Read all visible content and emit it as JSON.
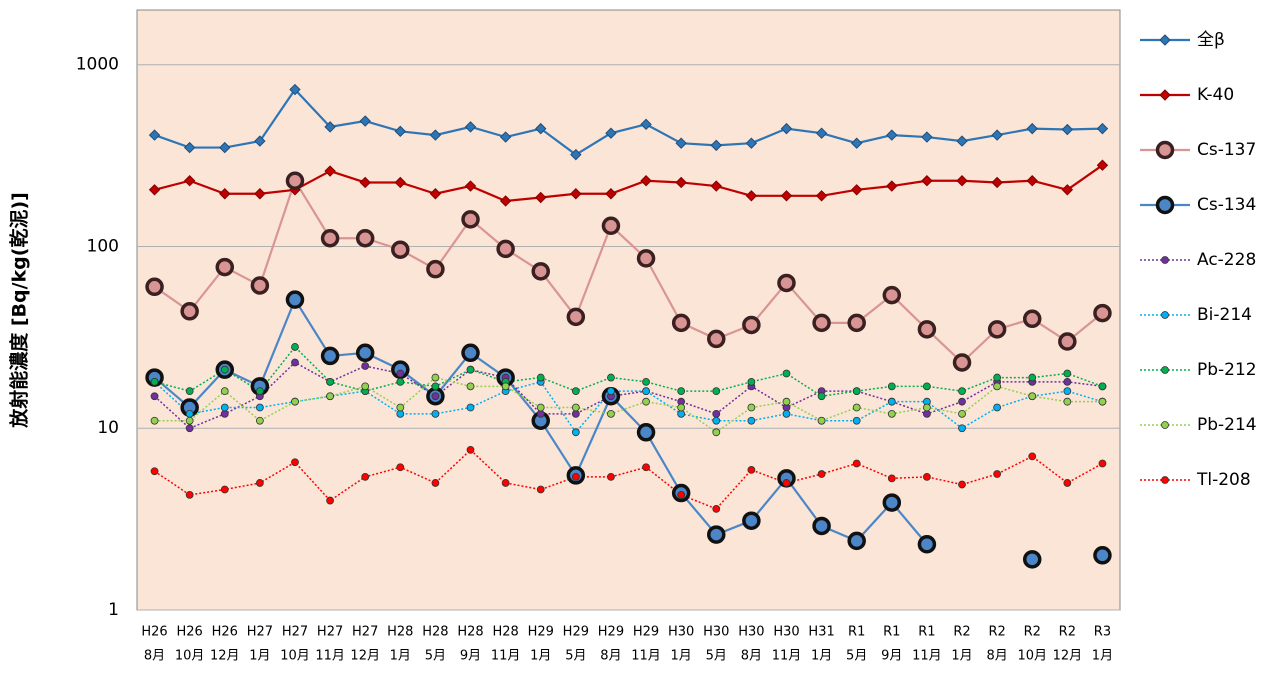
{
  "chart_data": {
    "type": "line",
    "ylabel": "放射能濃度 [Bq/kg(乾泥)]",
    "log_scale": true,
    "grid": true,
    "categories": [
      [
        "H26",
        "8月"
      ],
      [
        "H26",
        "10月"
      ],
      [
        "H26",
        "12月"
      ],
      [
        "H27",
        "1月"
      ],
      [
        "H27",
        "10月"
      ],
      [
        "H27",
        "11月"
      ],
      [
        "H27",
        "12月"
      ],
      [
        "H28",
        "1月"
      ],
      [
        "H28",
        "5月"
      ],
      [
        "H28",
        "9月"
      ],
      [
        "H28",
        "11月"
      ],
      [
        "H29",
        "1月"
      ],
      [
        "H29",
        "5月"
      ],
      [
        "H29",
        "8月"
      ],
      [
        "H29",
        "11月"
      ],
      [
        "H30",
        "1月"
      ],
      [
        "H30",
        "5月"
      ],
      [
        "H30",
        "8月"
      ],
      [
        "H30",
        "11月"
      ],
      [
        "H31",
        "1月"
      ],
      [
        "R1",
        "5月"
      ],
      [
        "R1",
        "9月"
      ],
      [
        "R1",
        "11月"
      ],
      [
        "R2",
        "1月"
      ],
      [
        "R2",
        "8月"
      ],
      [
        "R2",
        "10月"
      ],
      [
        "R2",
        "12月"
      ],
      [
        "R3",
        "1月"
      ]
    ],
    "ylim": [
      1,
      2000
    ],
    "yticks": [
      1,
      10,
      100,
      1000
    ],
    "series": [
      {
        "name": "全β",
        "color": "#2e75b6",
        "line_style": "solid",
        "marker": "diamond",
        "marker_edge": "#1f4e79",
        "values": [
          410,
          350,
          350,
          380,
          730,
          455,
          490,
          430,
          410,
          455,
          400,
          445,
          320,
          420,
          470,
          370,
          360,
          370,
          445,
          420,
          370,
          410,
          400,
          380,
          410,
          445,
          440,
          445
        ]
      },
      {
        "name": "K-40",
        "color": "#c00000",
        "line_style": "solid",
        "marker": "diamond",
        "marker_edge": "#800000",
        "values": [
          205,
          230,
          195,
          195,
          205,
          260,
          225,
          225,
          195,
          215,
          178,
          186,
          195,
          195,
          230,
          225,
          215,
          190,
          190,
          190,
          205,
          215,
          230,
          230,
          225,
          230,
          205,
          280
        ]
      },
      {
        "name": "Cs-137",
        "color": "#d99594",
        "line_style": "solid",
        "marker": "circle-large",
        "marker_edge": "#3a2020",
        "values": [
          60,
          44,
          77,
          61,
          230,
          111,
          111,
          96,
          75,
          141,
          97,
          73,
          41,
          130,
          86,
          38,
          31,
          37,
          63,
          38,
          38,
          54,
          35,
          23,
          35,
          40,
          30,
          43
        ]
      },
      {
        "name": "Cs-134",
        "color": "#4a86c8",
        "line_style": "solid",
        "marker": "circle-large",
        "marker_edge": "#111111",
        "values": [
          19,
          13,
          21,
          17,
          51,
          25,
          26,
          21,
          15,
          26,
          19,
          11,
          5.5,
          15,
          9.5,
          4.4,
          2.6,
          3.1,
          5.3,
          2.9,
          2.4,
          3.9,
          2.3,
          null,
          null,
          1.9,
          null,
          2.0
        ]
      },
      {
        "name": "Ac-228",
        "color": "#7030a0",
        "line_style": "dotted",
        "marker": "circle",
        "values": [
          15,
          10,
          12,
          15,
          23,
          18,
          22,
          20,
          15,
          21,
          19,
          12,
          12,
          15,
          16,
          14,
          12,
          17,
          13,
          16,
          16,
          14,
          12,
          14,
          18,
          18,
          18,
          17
        ]
      },
      {
        "name": "Bi-214",
        "color": "#00b0f0",
        "line_style": "dotted",
        "marker": "circle",
        "values": [
          18,
          12,
          13,
          13,
          14,
          15,
          16,
          12,
          12,
          13,
          16,
          18,
          9.5,
          16,
          16,
          12,
          11,
          11,
          12,
          11,
          11,
          14,
          14,
          10,
          13,
          15,
          16,
          14
        ]
      },
      {
        "name": "Pb-212",
        "color": "#00b050",
        "line_style": "dotted",
        "marker": "circle",
        "values": [
          18,
          16,
          21,
          16,
          28,
          18,
          16,
          18,
          17,
          21,
          18,
          19,
          16,
          19,
          18,
          16,
          16,
          18,
          20,
          15,
          16,
          17,
          17,
          16,
          19,
          19,
          20,
          17
        ]
      },
      {
        "name": "Pb-214",
        "color": "#92d050",
        "line_style": "dotted",
        "marker": "circle",
        "values": [
          11,
          11,
          16,
          11,
          14,
          15,
          17,
          13,
          19,
          17,
          17,
          13,
          13,
          12,
          14,
          13,
          9.5,
          13,
          14,
          11,
          13,
          12,
          13,
          12,
          17,
          15,
          14,
          14
        ]
      },
      {
        "name": "Tl-208",
        "color": "#ff0000",
        "line_style": "dotted",
        "marker": "circle",
        "values": [
          5.8,
          4.3,
          4.6,
          5.0,
          6.5,
          4.0,
          5.4,
          6.1,
          5.0,
          7.6,
          5.0,
          4.6,
          5.4,
          5.4,
          6.1,
          4.3,
          3.6,
          5.9,
          5.0,
          5.6,
          6.4,
          5.3,
          5.4,
          4.9,
          5.6,
          7.0,
          5.0,
          6.4
        ]
      }
    ]
  }
}
